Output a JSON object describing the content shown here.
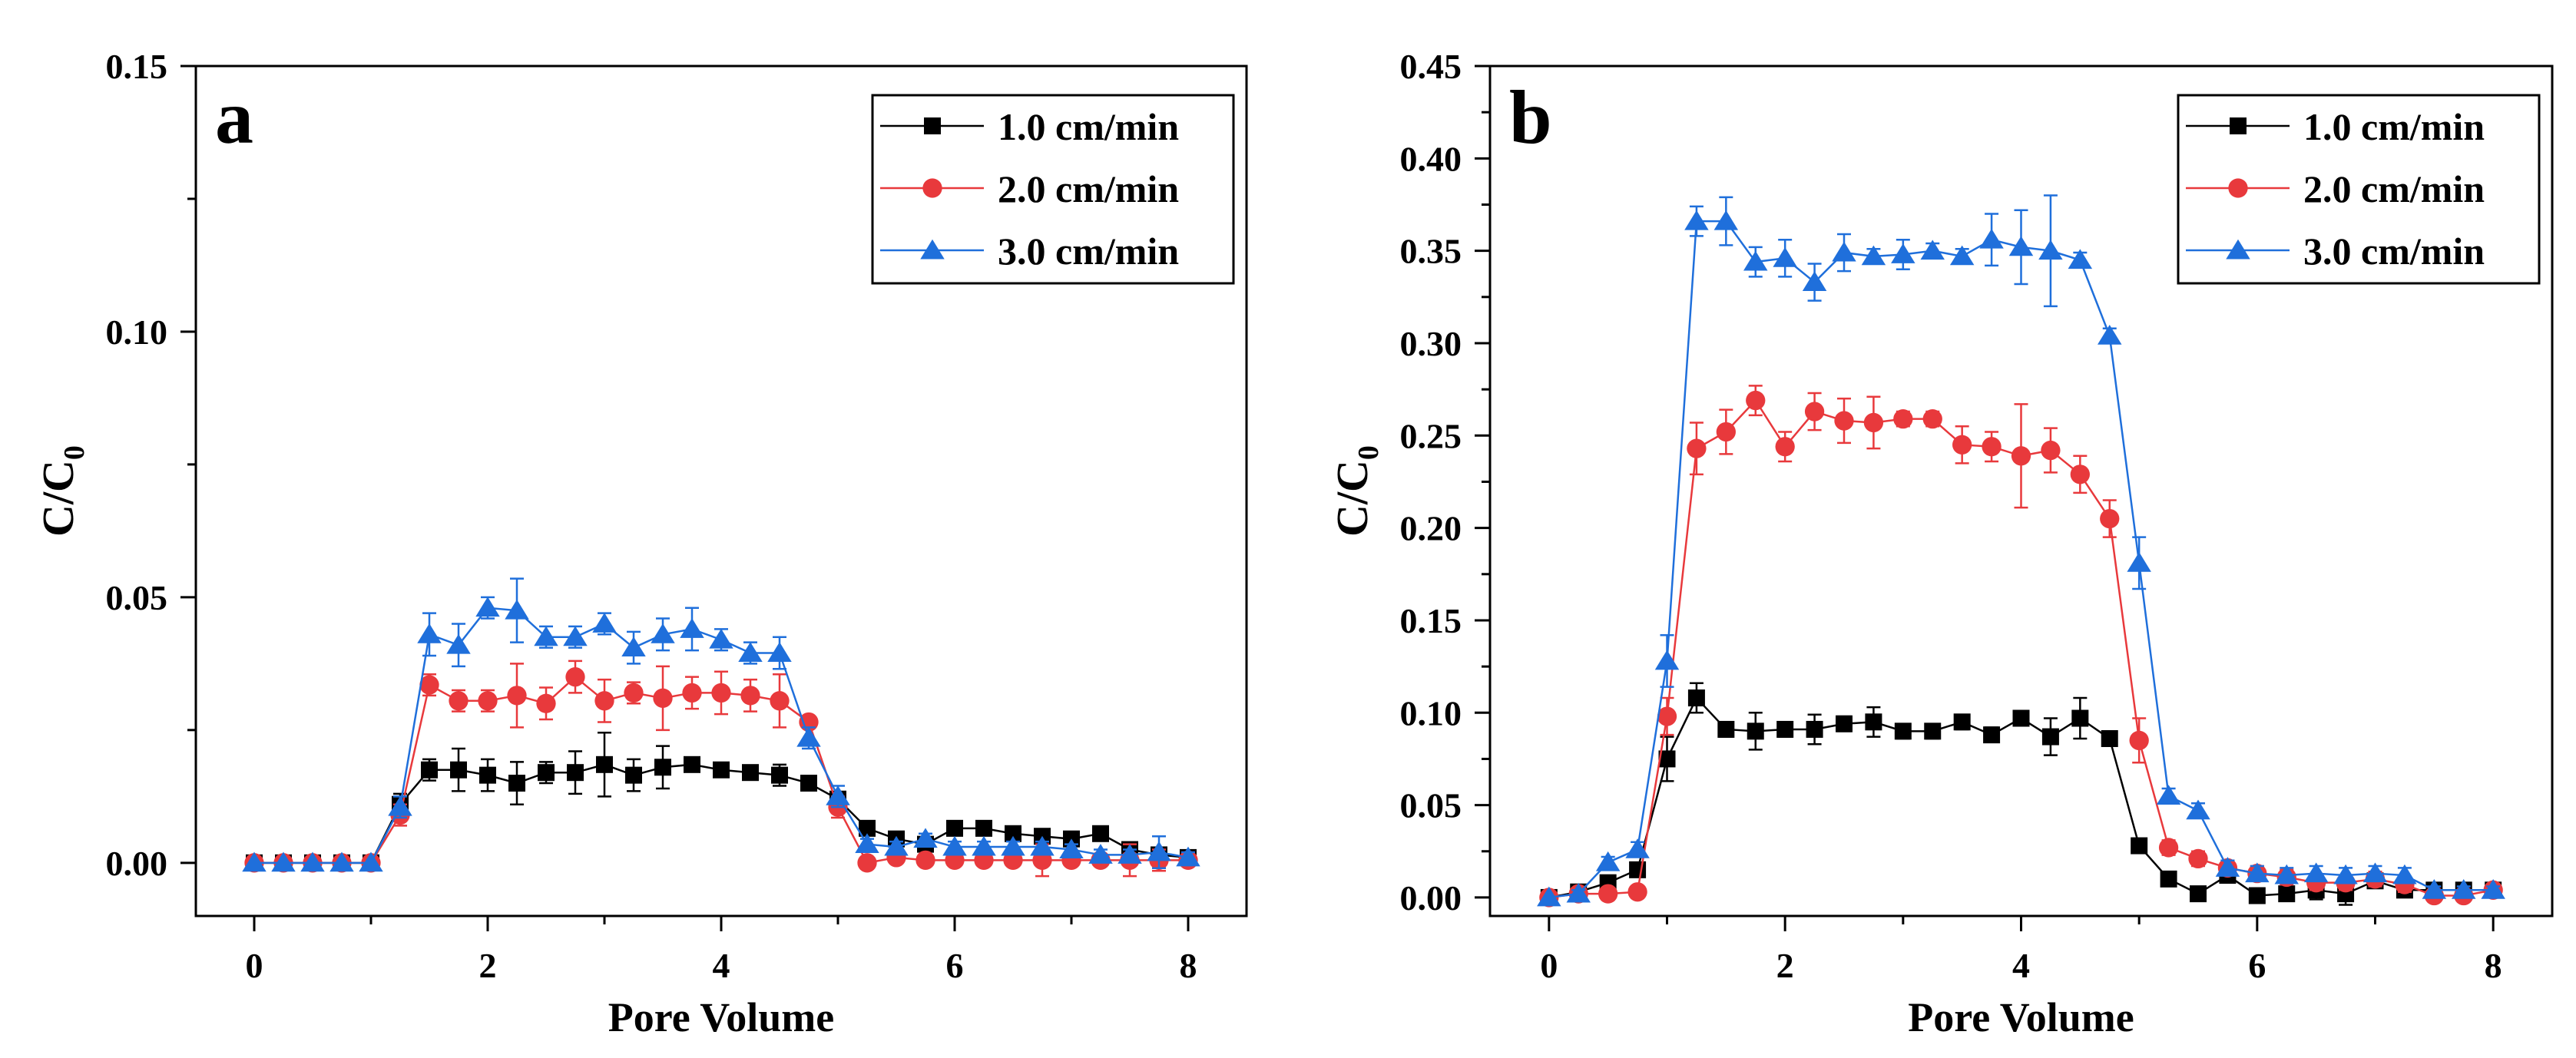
{
  "chart_data": [
    {
      "panel_label": "a",
      "type": "line",
      "xlabel": "Pore Volume",
      "ylabel_main": "C/C",
      "ylabel_sub": "0",
      "xlim": [
        -0.5,
        8.5
      ],
      "ylim": [
        -0.01,
        0.15
      ],
      "xticks": [
        0,
        2,
        4,
        6,
        8
      ],
      "xtick_labels": [
        "0",
        "2",
        "4",
        "6",
        "8"
      ],
      "yticks": [
        0.0,
        0.05,
        0.1,
        0.15
      ],
      "ytick_labels": [
        "0.00",
        "0.05",
        "0.10",
        "0.15"
      ],
      "legend_position": "top-right",
      "series": [
        {
          "name": "1.0 cm/min",
          "color": "#000000",
          "marker": "square",
          "x": [
            0,
            0.25,
            0.5,
            0.75,
            1.0,
            1.25,
            1.5,
            1.75,
            2.0,
            2.25,
            2.5,
            2.75,
            3.0,
            3.25,
            3.5,
            3.75,
            4.0,
            4.25,
            4.5,
            4.75,
            5.0,
            5.25,
            5.5,
            5.75,
            6.0,
            6.25,
            6.5,
            6.75,
            7.0,
            7.25,
            7.5,
            7.75,
            8.0
          ],
          "y": [
            0,
            0,
            0,
            0,
            0,
            0.011,
            0.0175,
            0.0175,
            0.0165,
            0.015,
            0.017,
            0.017,
            0.0185,
            0.0165,
            0.018,
            0.0185,
            0.0175,
            0.017,
            0.0165,
            0.015,
            0.012,
            0.0065,
            0.0045,
            0.0035,
            0.0065,
            0.0065,
            0.0055,
            0.005,
            0.0045,
            0.0055,
            0.0025,
            0.0015,
            0.001
          ],
          "err": [
            0,
            0,
            0,
            0,
            0,
            0.002,
            0.002,
            0.004,
            0.003,
            0.004,
            0.002,
            0.004,
            0.006,
            0.003,
            0.004,
            0.001,
            0.001,
            0.001,
            0.002,
            0.001,
            0.001,
            0.001,
            0.001,
            0.001,
            0.001,
            0.001,
            0.001,
            0.001,
            0.001,
            0.001,
            0.001,
            0.001,
            0.001
          ]
        },
        {
          "name": "2.0 cm/min",
          "color": "#e8393c",
          "marker": "circle",
          "x": [
            0,
            0.25,
            0.5,
            0.75,
            1.0,
            1.25,
            1.5,
            1.75,
            2.0,
            2.25,
            2.5,
            2.75,
            3.0,
            3.25,
            3.5,
            3.75,
            4.0,
            4.25,
            4.5,
            4.75,
            5.0,
            5.25,
            5.5,
            5.75,
            6.0,
            6.25,
            6.5,
            6.75,
            7.0,
            7.25,
            7.5,
            7.75,
            8.0
          ],
          "y": [
            0,
            0,
            0,
            0,
            0,
            0.009,
            0.0335,
            0.0305,
            0.0305,
            0.0315,
            0.03,
            0.035,
            0.0305,
            0.032,
            0.031,
            0.032,
            0.032,
            0.0315,
            0.0305,
            0.0265,
            0.0105,
            0.0,
            0.001,
            0.0005,
            0.0005,
            0.0005,
            0.0005,
            0.0005,
            0.0005,
            0.0005,
            0.0005,
            0.0005,
            0.0005
          ],
          "err": [
            0,
            0,
            0,
            0,
            0,
            0.002,
            0.002,
            0.002,
            0.002,
            0.006,
            0.003,
            0.003,
            0.004,
            0.002,
            0.006,
            0.003,
            0.004,
            0.003,
            0.005,
            0.001,
            0.002,
            0.001,
            0.001,
            0.001,
            0.001,
            0.001,
            0.001,
            0.003,
            0.001,
            0.001,
            0.003,
            0.002,
            0.001
          ]
        },
        {
          "name": "3.0 cm/min",
          "color": "#1f6fdb",
          "marker": "triangle",
          "x": [
            0,
            0.25,
            0.5,
            0.75,
            1.0,
            1.25,
            1.5,
            1.75,
            2.0,
            2.25,
            2.5,
            2.75,
            3.0,
            3.25,
            3.5,
            3.75,
            4.0,
            4.25,
            4.5,
            4.75,
            5.0,
            5.25,
            5.5,
            5.75,
            6.0,
            6.25,
            6.5,
            6.75,
            7.0,
            7.25,
            7.5,
            7.75,
            8.0
          ],
          "y": [
            0,
            0,
            0,
            0,
            0,
            0.0105,
            0.043,
            0.041,
            0.048,
            0.0475,
            0.0425,
            0.0425,
            0.045,
            0.0405,
            0.043,
            0.044,
            0.042,
            0.0395,
            0.0395,
            0.0235,
            0.0125,
            0.0035,
            0.003,
            0.0045,
            0.003,
            0.003,
            0.003,
            0.003,
            0.0025,
            0.0015,
            0.0015,
            0.002,
            0.001
          ],
          "err": [
            0,
            0,
            0,
            0,
            0,
            0.002,
            0.004,
            0.004,
            0.002,
            0.006,
            0.002,
            0.002,
            0.002,
            0.003,
            0.003,
            0.004,
            0.002,
            0.002,
            0.003,
            0.002,
            0.002,
            0.001,
            0.001,
            0.001,
            0.001,
            0.001,
            0.001,
            0.001,
            0.001,
            0.001,
            0.001,
            0.003,
            0.001
          ]
        }
      ]
    },
    {
      "panel_label": "b",
      "type": "line",
      "xlabel": "Pore Volume",
      "ylabel_main": "C/C",
      "ylabel_sub": "0",
      "xlim": [
        -0.5,
        8.5
      ],
      "ylim": [
        -0.01,
        0.45
      ],
      "xticks": [
        0,
        2,
        4,
        6,
        8
      ],
      "xtick_labels": [
        "0",
        "2",
        "4",
        "6",
        "8"
      ],
      "yticks": [
        0.0,
        0.05,
        0.1,
        0.15,
        0.2,
        0.25,
        0.3,
        0.35,
        0.4,
        0.45
      ],
      "ytick_labels": [
        "0.00",
        "0.05",
        "0.10",
        "0.15",
        "0.20",
        "0.25",
        "0.30",
        "0.35",
        "0.40",
        "0.45"
      ],
      "legend_position": "top-right",
      "series": [
        {
          "name": "1.0 cm/min",
          "color": "#000000",
          "marker": "square",
          "x": [
            0,
            0.25,
            0.5,
            0.75,
            1.0,
            1.25,
            1.5,
            1.75,
            2.0,
            2.25,
            2.5,
            2.75,
            3.0,
            3.25,
            3.5,
            3.75,
            4.0,
            4.25,
            4.5,
            4.75,
            5.0,
            5.25,
            5.5,
            5.75,
            6.0,
            6.25,
            6.5,
            6.75,
            7.0,
            7.25,
            7.5,
            7.75,
            8.0
          ],
          "y": [
            0,
            0.003,
            0.008,
            0.015,
            0.075,
            0.108,
            0.091,
            0.09,
            0.091,
            0.091,
            0.094,
            0.095,
            0.09,
            0.09,
            0.095,
            0.088,
            0.097,
            0.087,
            0.097,
            0.086,
            0.028,
            0.01,
            0.002,
            0.012,
            0.001,
            0.002,
            0.004,
            0.002,
            0.009,
            0.004,
            0.004,
            0.004,
            0.004
          ],
          "err": [
            0,
            0.002,
            0.003,
            0.003,
            0.012,
            0.008,
            0.004,
            0.01,
            0.004,
            0.008,
            0.004,
            0.008,
            0.004,
            0.004,
            0.004,
            0.004,
            0.004,
            0.01,
            0.011,
            0.004,
            0.002,
            0.002,
            0.002,
            0.002,
            0.002,
            0.002,
            0.005,
            0.006,
            0.003,
            0.002,
            0.002,
            0.002,
            0.002
          ]
        },
        {
          "name": "2.0 cm/min",
          "color": "#e8393c",
          "marker": "circle",
          "x": [
            0,
            0.25,
            0.5,
            0.75,
            1.0,
            1.25,
            1.5,
            1.75,
            2.0,
            2.25,
            2.5,
            2.75,
            3.0,
            3.25,
            3.5,
            3.75,
            4.0,
            4.25,
            4.5,
            4.75,
            5.0,
            5.25,
            5.5,
            5.75,
            6.0,
            6.25,
            6.5,
            6.75,
            7.0,
            7.25,
            7.5,
            7.75,
            8.0
          ],
          "y": [
            0,
            0.002,
            0.002,
            0.003,
            0.098,
            0.243,
            0.252,
            0.269,
            0.244,
            0.263,
            0.258,
            0.257,
            0.259,
            0.259,
            0.245,
            0.244,
            0.239,
            0.242,
            0.229,
            0.205,
            0.085,
            0.027,
            0.021,
            0.016,
            0.013,
            0.011,
            0.008,
            0.008,
            0.01,
            0.007,
            0.001,
            0.001,
            0.004
          ],
          "err": [
            0,
            0.002,
            0.002,
            0.002,
            0.01,
            0.014,
            0.012,
            0.008,
            0.008,
            0.01,
            0.012,
            0.014,
            0.004,
            0.004,
            0.01,
            0.008,
            0.028,
            0.012,
            0.01,
            0.01,
            0.012,
            0.004,
            0.004,
            0.004,
            0.004,
            0.004,
            0.004,
            0.004,
            0.004,
            0.004,
            0.002,
            0.002,
            0.002
          ]
        },
        {
          "name": "3.0 cm/min",
          "color": "#1f6fdb",
          "marker": "triangle",
          "x": [
            0,
            0.25,
            0.5,
            0.75,
            1.0,
            1.25,
            1.5,
            1.75,
            2.0,
            2.25,
            2.5,
            2.75,
            3.0,
            3.25,
            3.5,
            3.75,
            4.0,
            4.25,
            4.5,
            4.75,
            5.0,
            5.25,
            5.5,
            5.75,
            6.0,
            6.25,
            6.5,
            6.75,
            7.0,
            7.25,
            7.5,
            7.75,
            8.0
          ],
          "y": [
            0,
            0.002,
            0.019,
            0.026,
            0.128,
            0.366,
            0.366,
            0.344,
            0.346,
            0.333,
            0.349,
            0.347,
            0.348,
            0.35,
            0.347,
            0.356,
            0.352,
            0.35,
            0.345,
            0.304,
            0.181,
            0.055,
            0.047,
            0.016,
            0.013,
            0.012,
            0.013,
            0.012,
            0.013,
            0.012,
            0.004,
            0.004,
            0.004
          ],
          "err": [
            0,
            0.002,
            0.003,
            0.004,
            0.014,
            0.008,
            0.013,
            0.008,
            0.01,
            0.01,
            0.01,
            0.004,
            0.008,
            0.004,
            0.004,
            0.014,
            0.02,
            0.03,
            0.004,
            0.004,
            0.014,
            0.004,
            0.004,
            0.004,
            0.004,
            0.004,
            0.004,
            0.004,
            0.004,
            0.004,
            0.002,
            0.002,
            0.002
          ]
        }
      ]
    }
  ]
}
